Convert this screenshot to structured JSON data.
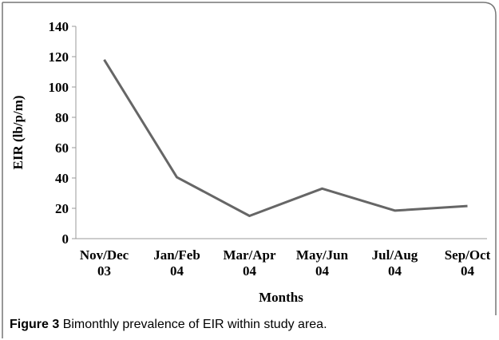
{
  "chart_data": {
    "type": "line",
    "categories": [
      "Nov/Dec\n03",
      "Jan/Feb\n04",
      "Mar/Apr\n04",
      "May/Jun\n04",
      "Jul/Aug\n04",
      "Sep/Oct\n04"
    ],
    "series": [
      {
        "name": "EIR",
        "color": "#666666",
        "values": [
          118,
          40.5,
          15,
          33,
          18.5,
          21.5
        ]
      }
    ],
    "ylim": [
      0,
      140
    ],
    "yticks": [
      0,
      20,
      40,
      60,
      80,
      100,
      120,
      140
    ],
    "x_label": "Months",
    "y_label": "EIR (lb/p/m)",
    "legend": false
  },
  "figure": {
    "label": "Figure 3",
    "caption": "Bimonthly prevalence of EIR within study area."
  }
}
